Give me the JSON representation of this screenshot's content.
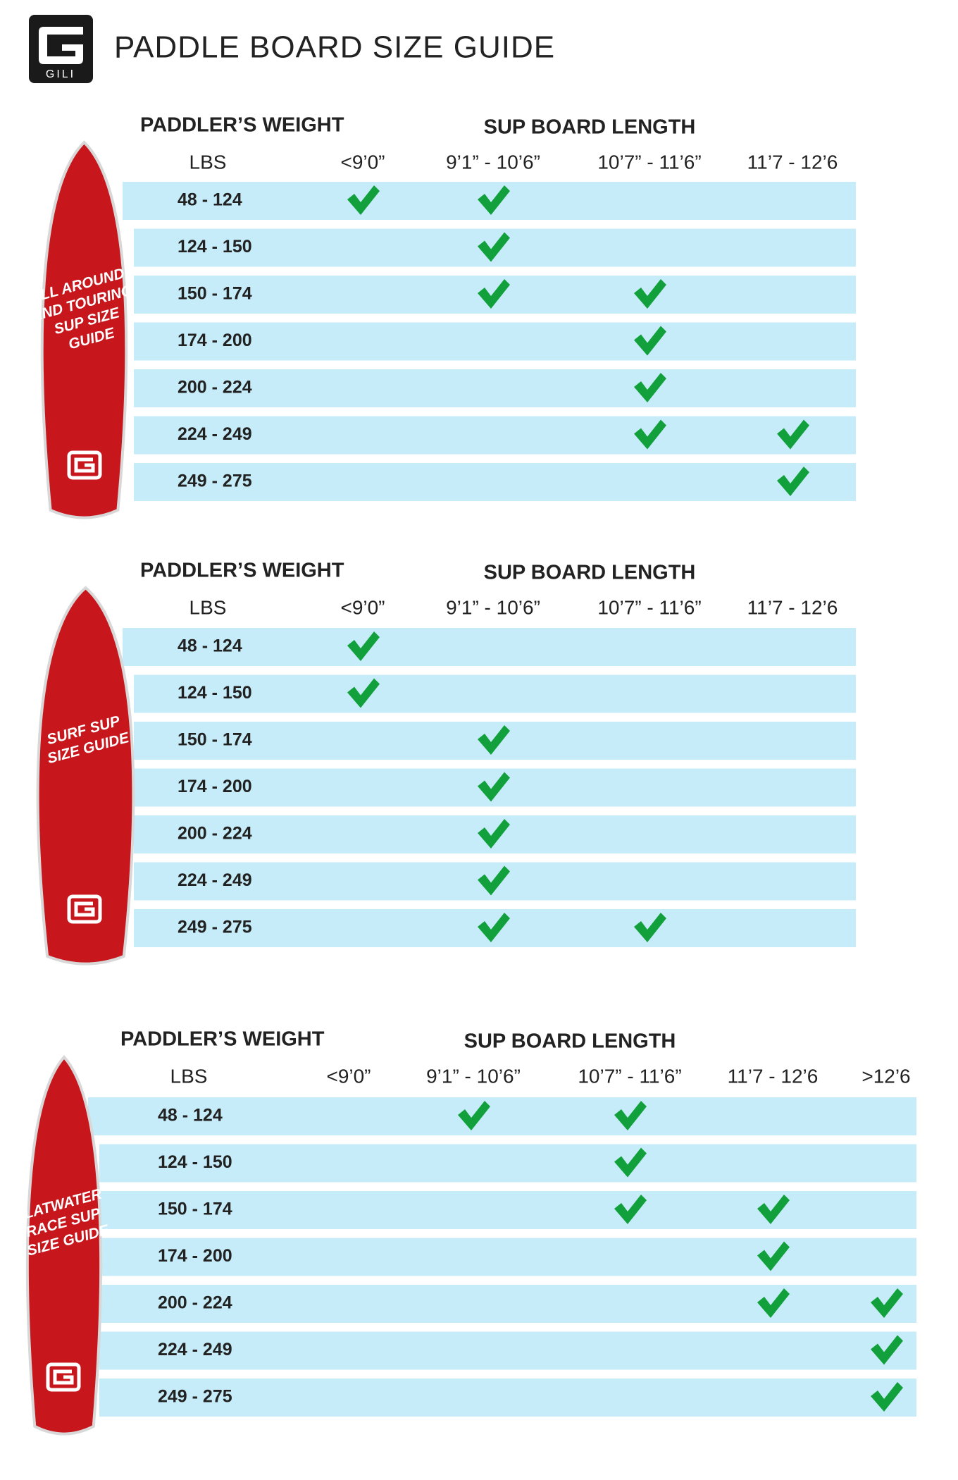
{
  "header": {
    "logo_text": "GILI",
    "title": "PADDLE BOARD SIZE GUIDE"
  },
  "sections": [
    {
      "board_label": [
        "ALL AROUND",
        "AND TOURING",
        "SUP SIZE",
        "GUIDE"
      ],
      "weight_header": "PADDLER’S WEIGHT",
      "length_header": "SUP BOARD LENGTH",
      "unit": "LBS",
      "columns": [
        "<9’0”",
        "9’1” - 10’6”",
        "10’7” - 11’6”",
        "11’7 - 12’6"
      ],
      "rows": [
        {
          "weight": "48 - 124",
          "checks": [
            true,
            true,
            false,
            false
          ]
        },
        {
          "weight": "124 - 150",
          "checks": [
            false,
            true,
            false,
            false
          ]
        },
        {
          "weight": "150 - 174",
          "checks": [
            false,
            true,
            true,
            false
          ]
        },
        {
          "weight": "174 - 200",
          "checks": [
            false,
            false,
            true,
            false
          ]
        },
        {
          "weight": "200 - 224",
          "checks": [
            false,
            false,
            true,
            false
          ]
        },
        {
          "weight": "224 - 249",
          "checks": [
            false,
            false,
            true,
            true
          ]
        },
        {
          "weight": "249 - 275",
          "checks": [
            false,
            false,
            false,
            true
          ]
        }
      ]
    },
    {
      "board_label": [
        "SURF SUP",
        "SIZE GUIDE"
      ],
      "weight_header": "PADDLER’S WEIGHT",
      "length_header": "SUP BOARD LENGTH",
      "unit": "LBS",
      "columns": [
        "<9’0”",
        "9’1” - 10’6”",
        "10’7” - 11’6”",
        "11’7 - 12’6"
      ],
      "rows": [
        {
          "weight": "48 - 124",
          "checks": [
            true,
            false,
            false,
            false
          ]
        },
        {
          "weight": "124 - 150",
          "checks": [
            true,
            false,
            false,
            false
          ]
        },
        {
          "weight": "150 - 174",
          "checks": [
            false,
            true,
            false,
            false
          ]
        },
        {
          "weight": "174 - 200",
          "checks": [
            false,
            true,
            false,
            false
          ]
        },
        {
          "weight": "200 - 224",
          "checks": [
            false,
            true,
            false,
            false
          ]
        },
        {
          "weight": "224 - 249",
          "checks": [
            false,
            true,
            false,
            false
          ]
        },
        {
          "weight": "249 - 275",
          "checks": [
            false,
            true,
            true,
            false
          ]
        }
      ]
    },
    {
      "board_label": [
        "FLATWATER",
        "RACE SUP",
        "SIZE GUIDE"
      ],
      "weight_header": "PADDLER’S WEIGHT",
      "length_header": "SUP BOARD LENGTH",
      "unit": "LBS",
      "columns": [
        "<9’0”",
        "9’1” - 10’6”",
        "10’7” - 11’6”",
        "11’7 - 12’6",
        ">12’6"
      ],
      "rows": [
        {
          "weight": "48 - 124",
          "checks": [
            false,
            true,
            true,
            false,
            false
          ]
        },
        {
          "weight": "124 - 150",
          "checks": [
            false,
            false,
            true,
            false,
            false
          ]
        },
        {
          "weight": "150 - 174",
          "checks": [
            false,
            false,
            true,
            true,
            false
          ]
        },
        {
          "weight": "174 - 200",
          "checks": [
            false,
            false,
            false,
            true,
            false
          ]
        },
        {
          "weight": "200 - 224",
          "checks": [
            false,
            false,
            false,
            true,
            true
          ]
        },
        {
          "weight": "224 - 249",
          "checks": [
            false,
            false,
            false,
            false,
            true
          ]
        },
        {
          "weight": "249 - 275",
          "checks": [
            false,
            false,
            false,
            false,
            true
          ]
        }
      ]
    }
  ]
}
